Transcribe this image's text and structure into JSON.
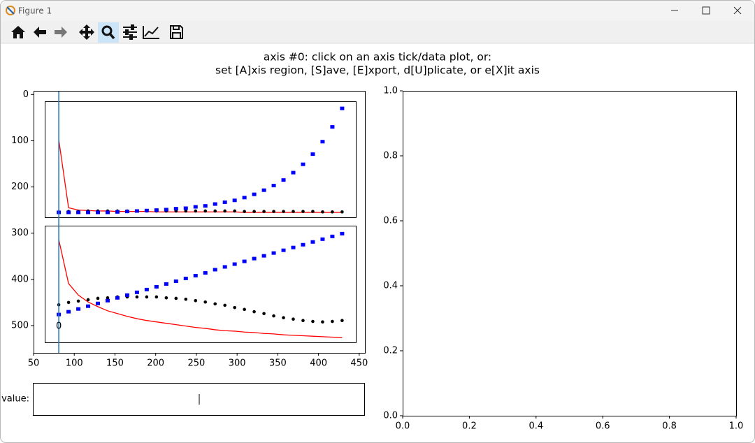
{
  "window": {
    "title": "Figure 1"
  },
  "message": [
    "axis #0: click on an axis tick/data plot, or:",
    "set [A]xis region, [S]ave, [E]xport, d[U]plicate, or e[X]it axis"
  ],
  "value_box": {
    "label": "value:"
  },
  "chart_data": [
    {
      "type": "line",
      "x": [
        81,
        93,
        105,
        117,
        129,
        141,
        153,
        165,
        177,
        189,
        201,
        213,
        225,
        237,
        249,
        261,
        273,
        285,
        297,
        309,
        321,
        333,
        345,
        357,
        369,
        381,
        393,
        405,
        417,
        429
      ],
      "xlim": [
        50,
        457
      ],
      "xticks": [
        50,
        100,
        150,
        200,
        250,
        300,
        350,
        400,
        450
      ],
      "ylim": [
        559,
        -8
      ],
      "yticks": [
        0,
        100,
        200,
        300,
        400,
        500
      ],
      "cursor": {
        "x": 81,
        "label": "0",
        "color": "#1f77b4"
      },
      "panels": [
        {
          "series": [
            {
              "marker": "line",
              "color": "#ff0000",
              "values": [
                98,
                245,
                250,
                251,
                252,
                252,
                253,
                253,
                253,
                253,
                254,
                254,
                254,
                254,
                254,
                254,
                254,
                254,
                254,
                255,
                255,
                255,
                255,
                255,
                255,
                255,
                255,
                255,
                255,
                255
              ]
            },
            {
              "marker": "dot",
              "color": "#000000",
              "values": [
                254,
                253,
                253,
                252,
                252,
                252,
                252,
                252,
                252,
                252,
                252,
                252,
                252,
                252,
                252,
                252,
                252,
                252,
                252,
                253,
                253,
                253,
                253,
                253,
                253,
                253,
                253,
                254,
                254,
                254
              ]
            },
            {
              "marker": "square",
              "color": "#0000ff",
              "values": [
                255,
                255,
                255,
                255,
                255,
                255,
                254,
                253,
                252,
                251,
                250,
                249,
                247,
                246,
                243,
                241,
                237,
                233,
                229,
                223,
                216,
                207,
                197,
                185,
                169,
                151,
                129,
                102,
                70,
                30
              ]
            }
          ]
        },
        {
          "series": [
            {
              "marker": "line",
              "color": "#ff0000",
              "values": [
                314,
                409,
                434,
                449,
                459,
                468,
                474,
                480,
                485,
                489,
                492,
                495,
                498,
                501,
                504,
                506,
                509,
                511,
                512,
                514,
                515,
                517,
                518,
                520,
                521,
                522,
                523,
                524,
                525,
                526
              ]
            },
            {
              "marker": "dot",
              "color": "#000000",
              "values": [
                455,
                450,
                447,
                444,
                441,
                440,
                438,
                438,
                438,
                438,
                438,
                440,
                441,
                443,
                446,
                449,
                453,
                456,
                461,
                465,
                470,
                474,
                479,
                483,
                486,
                489,
                491,
                492,
                491,
                489
              ]
            },
            {
              "marker": "square",
              "color": "#0000ff",
              "values": [
                476,
                470,
                464,
                458,
                452,
                446,
                440,
                434,
                428,
                422,
                416,
                410,
                404,
                398,
                392,
                386,
                379,
                373,
                367,
                361,
                355,
                349,
                343,
                337,
                331,
                325,
                319,
                313,
                307,
                301
              ]
            }
          ]
        }
      ]
    },
    {
      "type": "empty",
      "xlim": [
        0,
        1
      ],
      "xticks": [
        {
          "value": 0,
          "label": "0.0"
        },
        0.2,
        0.4,
        0.6,
        0.8,
        {
          "value": 1,
          "label": "1.0"
        }
      ],
      "ylim": [
        0,
        1
      ],
      "yticks": [
        {
          "value": 0,
          "label": "0.0"
        },
        0.2,
        0.4,
        0.6,
        0.8,
        {
          "value": 1,
          "label": "1.0"
        }
      ]
    }
  ]
}
